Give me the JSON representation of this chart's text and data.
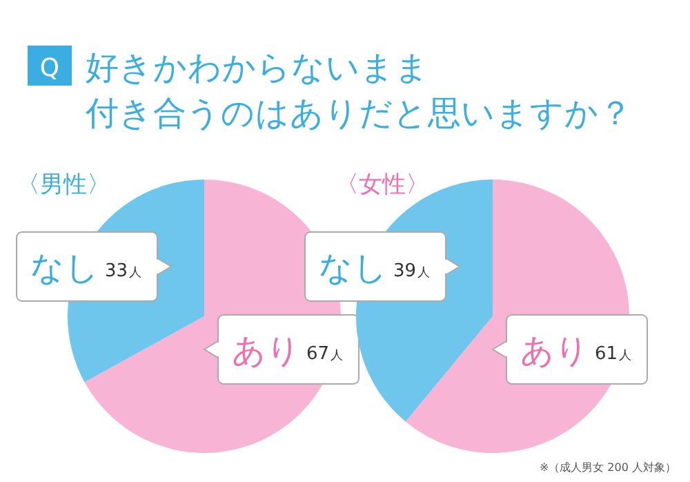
{
  "chart_data": [
    {
      "type": "pie",
      "title": "好きかわからないまま付き合うのはありだと思いますか？",
      "subtitle": "〈男性〉",
      "annotations": [
        "Q"
      ],
      "categories": [
        "あり",
        "なし"
      ],
      "values": [
        67,
        33
      ],
      "value_labels": [
        "67人",
        "33人"
      ],
      "colors": [
        "#f8b4d4",
        "#6fc6ec"
      ]
    },
    {
      "type": "pie",
      "subtitle": "〈女性〉",
      "annotations": [
        "※（成人男女 200 人対象）"
      ],
      "categories": [
        "あり",
        "なし"
      ],
      "values": [
        61,
        39
      ],
      "value_labels": [
        "61人",
        "39人"
      ],
      "colors": [
        "#f8b4d4",
        "#6fc6ec"
      ]
    }
  ]
}
